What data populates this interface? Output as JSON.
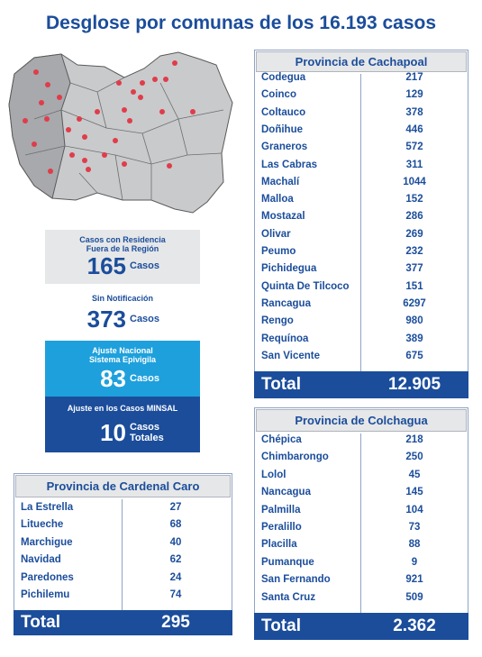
{
  "title": "Desglose por comunas de los 16.193 casos",
  "boxes": [
    {
      "label_lines": [
        "Casos con Residencia",
        "Fuera de la Región"
      ],
      "number": 165,
      "unit_lines": [
        "Casos"
      ]
    },
    {
      "label_lines": [
        "Sin Notificación"
      ],
      "number": 373,
      "unit_lines": [
        "Casos"
      ]
    },
    {
      "label_lines": [
        "Ajuste Nacional",
        "Sistema Epivigila"
      ],
      "number": 83,
      "unit_lines": [
        "Casos"
      ]
    },
    {
      "label_lines": [
        "Ajuste en los Casos MINSAL"
      ],
      "number": 10,
      "unit_lines": [
        "Casos",
        "Totales"
      ]
    }
  ],
  "tables": [
    {
      "title": "Provincia de Cachapoal",
      "rows": [
        [
          "Codegua",
          217
        ],
        [
          "Coinco",
          129
        ],
        [
          "Coltauco",
          378
        ],
        [
          "Doñihue",
          446
        ],
        [
          "Graneros",
          572
        ],
        [
          "Las Cabras",
          311
        ],
        [
          "Machalí",
          1044
        ],
        [
          "Malloa",
          152
        ],
        [
          "Mostazal",
          286
        ],
        [
          "Olivar",
          269
        ],
        [
          "Peumo",
          232
        ],
        [
          "Pichidegua",
          377
        ],
        [
          "Quinta De Tilcoco",
          151
        ],
        [
          "Rancagua",
          6297
        ],
        [
          "Rengo",
          980
        ],
        [
          "Requínoa",
          389
        ],
        [
          "San Vicente",
          675
        ]
      ],
      "total_label": "Total",
      "total": "12.905"
    },
    {
      "title": "Provincia de Colchagua",
      "rows": [
        [
          "Chépica",
          218
        ],
        [
          "Chimbarongo",
          250
        ],
        [
          "Lolol",
          45
        ],
        [
          "Nancagua",
          145
        ],
        [
          "Palmilla",
          104
        ],
        [
          "Peralillo",
          73
        ],
        [
          "Placilla",
          88
        ],
        [
          "Pumanque",
          9
        ],
        [
          "San Fernando",
          921
        ],
        [
          "Santa Cruz",
          509
        ]
      ],
      "total_label": "Total",
      "total": "2.362"
    },
    {
      "title": "Provincia de Cardenal Caro",
      "rows": [
        [
          "La Estrella",
          27
        ],
        [
          "Litueche",
          68
        ],
        [
          "Marchigue",
          40
        ],
        [
          "Navidad",
          62
        ],
        [
          "Paredones",
          24
        ],
        [
          "Pichilemu",
          74
        ]
      ],
      "total_label": "Total",
      "total": 295
    }
  ]
}
